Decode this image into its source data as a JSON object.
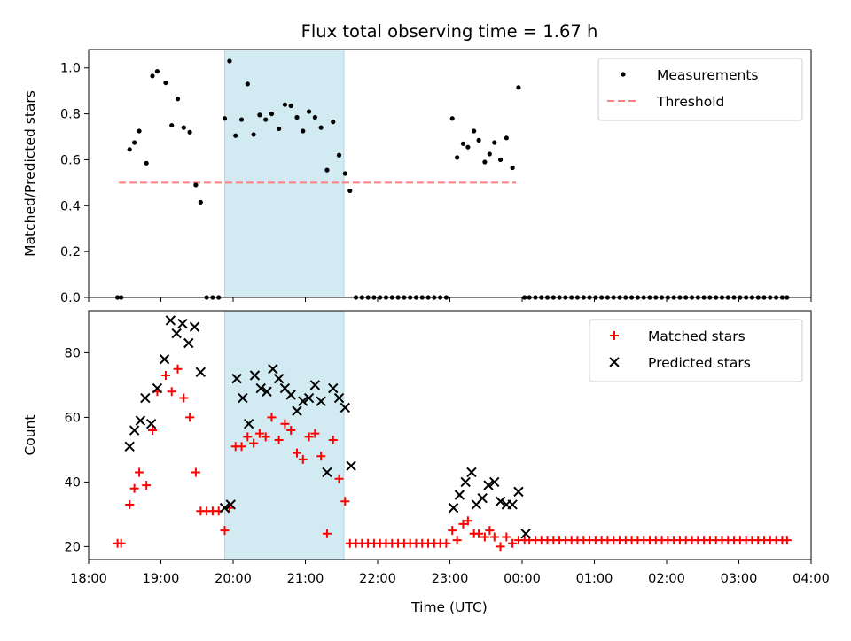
{
  "figure": {
    "title": "Flux total observing time = 1.67 h",
    "xlabel": "Time (UTC)"
  },
  "colors": {
    "measurements": "#000000",
    "threshold": "#ff7f7f",
    "matched": "#ff0000",
    "predicted": "#000000",
    "highlight": "#add8e6"
  },
  "chart_data": [
    {
      "type": "scatter",
      "panel": "top",
      "ylabel": "Matched/Predicted stars",
      "xlim": [
        "18:00",
        "04:00"
      ],
      "ylim": [
        0.0,
        1.08
      ],
      "yticks": [
        0.0,
        0.2,
        0.4,
        0.6,
        0.8,
        1.0
      ],
      "ytick_labels": [
        "0.0",
        "0.2",
        "0.4",
        "0.6",
        "0.8",
        "1.0"
      ],
      "highlight_span": [
        "19:53",
        "21:32"
      ],
      "legend": {
        "position": "top-right",
        "entries": [
          "Measurements",
          "Threshold"
        ]
      },
      "threshold": {
        "name": "Threshold",
        "value": 0.5,
        "x": [
          "18:25",
          "23:55"
        ]
      },
      "series": [
        {
          "name": "Measurements",
          "marker": "dot",
          "x": [
            "18:24",
            "18:27",
            "18:34",
            "18:38",
            "18:42",
            "18:48",
            "18:53",
            "18:57",
            "19:04",
            "19:09",
            "19:14",
            "19:19",
            "19:24",
            "19:29",
            "19:33",
            "19:38",
            "19:43",
            "19:48",
            "19:53",
            "19:57",
            "20:02",
            "20:07",
            "20:12",
            "20:17",
            "20:22",
            "20:27",
            "20:32",
            "20:38",
            "20:43",
            "20:48",
            "20:53",
            "20:58",
            "21:03",
            "21:08",
            "21:13",
            "21:18",
            "21:23",
            "21:28",
            "21:33",
            "21:37",
            "21:42",
            "21:47",
            "21:52",
            "21:57",
            "22:02",
            "22:07",
            "22:12",
            "22:17",
            "22:22",
            "22:27",
            "22:32",
            "22:37",
            "22:42",
            "22:47",
            "22:52",
            "22:57",
            "23:02",
            "23:06",
            "23:11",
            "23:15",
            "23:20",
            "23:24",
            "23:29",
            "23:33",
            "23:37",
            "23:42",
            "23:47",
            "23:52",
            "23:57",
            "00:02",
            "00:06",
            "00:11",
            "00:16",
            "00:21",
            "00:26",
            "00:31",
            "00:36",
            "00:41",
            "00:46",
            "00:51",
            "00:56",
            "01:01",
            "01:06",
            "01:11",
            "01:16",
            "01:21",
            "01:26",
            "01:31",
            "01:36",
            "01:41",
            "01:46",
            "01:51",
            "01:56",
            "02:01",
            "02:06",
            "02:11",
            "02:16",
            "02:21",
            "02:26",
            "02:31",
            "02:36",
            "02:41",
            "02:46",
            "02:51",
            "02:56",
            "03:01",
            "03:06",
            "03:11",
            "03:16",
            "03:21",
            "03:26",
            "03:31",
            "03:36",
            "03:40"
          ],
          "y": [
            0.0,
            0.0,
            0.645,
            0.675,
            0.725,
            0.585,
            0.965,
            0.985,
            0.935,
            0.75,
            0.865,
            0.74,
            0.72,
            0.49,
            0.415,
            0.0,
            0.0,
            0.0,
            0.78,
            1.03,
            0.705,
            0.775,
            0.93,
            0.71,
            0.795,
            0.775,
            0.8,
            0.735,
            0.84,
            0.835,
            0.785,
            0.725,
            0.81,
            0.785,
            0.74,
            0.555,
            0.765,
            0.62,
            0.54,
            0.465,
            0.0,
            0.0,
            0.0,
            0.0,
            0.0,
            0.0,
            0.0,
            0.0,
            0.0,
            0.0,
            0.0,
            0.0,
            0.0,
            0.0,
            0.0,
            0.0,
            0.78,
            0.61,
            0.67,
            0.655,
            0.725,
            0.685,
            0.59,
            0.625,
            0.675,
            0.6,
            0.695,
            0.565,
            0.915,
            0.0,
            0.0,
            0.0,
            0.0,
            0.0,
            0.0,
            0.0,
            0.0,
            0.0,
            0.0,
            0.0,
            0.0,
            0.0,
            0.0,
            0.0,
            0.0,
            0.0,
            0.0,
            0.0,
            0.0,
            0.0,
            0.0,
            0.0,
            0.0,
            0.0,
            0.0,
            0.0,
            0.0,
            0.0,
            0.0,
            0.0,
            0.0,
            0.0,
            0.0,
            0.0,
            0.0,
            0.0,
            0.0,
            0.0,
            0.0,
            0.0,
            0.0,
            0.0,
            0.0,
            0.0
          ]
        }
      ]
    },
    {
      "type": "scatter",
      "panel": "bottom",
      "ylabel": "Count",
      "xlabel": "Time (UTC)",
      "xlim": [
        "18:00",
        "04:00"
      ],
      "ylim": [
        16,
        93
      ],
      "yticks": [
        20,
        40,
        60,
        80
      ],
      "ytick_labels": [
        "20",
        "40",
        "60",
        "80"
      ],
      "xticks": [
        "18:00",
        "19:00",
        "20:00",
        "21:00",
        "22:00",
        "23:00",
        "00:00",
        "01:00",
        "02:00",
        "03:00",
        "04:00"
      ],
      "highlight_span": [
        "19:53",
        "21:32"
      ],
      "legend": {
        "position": "top-right",
        "entries": [
          "Matched stars",
          "Predicted stars"
        ]
      },
      "series": [
        {
          "name": "Matched stars",
          "marker": "plus",
          "x": [
            "18:24",
            "18:27",
            "18:34",
            "18:38",
            "18:42",
            "18:48",
            "18:53",
            "18:57",
            "19:04",
            "19:09",
            "19:14",
            "19:19",
            "19:24",
            "19:29",
            "19:33",
            "19:38",
            "19:43",
            "19:48",
            "19:53",
            "19:57",
            "20:02",
            "20:07",
            "20:12",
            "20:17",
            "20:22",
            "20:27",
            "20:32",
            "20:38",
            "20:43",
            "20:48",
            "20:53",
            "20:58",
            "21:03",
            "21:08",
            "21:13",
            "21:18",
            "21:23",
            "21:28",
            "21:33",
            "21:37",
            "21:42",
            "21:47",
            "21:52",
            "21:57",
            "22:02",
            "22:07",
            "22:12",
            "22:17",
            "22:22",
            "22:27",
            "22:32",
            "22:37",
            "22:42",
            "22:47",
            "22:52",
            "22:57",
            "23:02",
            "23:06",
            "23:11",
            "23:15",
            "23:20",
            "23:24",
            "23:29",
            "23:33",
            "23:37",
            "23:42",
            "23:47",
            "23:52",
            "23:57",
            "00:02",
            "00:06",
            "00:11",
            "00:16",
            "00:21",
            "00:26",
            "00:31",
            "00:36",
            "00:41",
            "00:46",
            "00:51",
            "00:56",
            "01:01",
            "01:06",
            "01:11",
            "01:16",
            "01:21",
            "01:26",
            "01:31",
            "01:36",
            "01:41",
            "01:46",
            "01:51",
            "01:56",
            "02:01",
            "02:06",
            "02:11",
            "02:16",
            "02:21",
            "02:26",
            "02:31",
            "02:36",
            "02:41",
            "02:46",
            "02:51",
            "02:56",
            "03:01",
            "03:06",
            "03:11",
            "03:16",
            "03:21",
            "03:26",
            "03:31",
            "03:36",
            "03:40"
          ],
          "y": [
            21,
            21,
            33,
            38,
            43,
            39,
            56,
            68,
            73,
            68,
            75,
            66,
            60,
            43,
            31,
            31,
            31,
            31,
            25,
            32,
            51,
            51,
            54,
            52,
            55,
            54,
            60,
            53,
            58,
            56,
            49,
            47,
            54,
            55,
            48,
            24,
            53,
            41,
            34,
            21,
            21,
            21,
            21,
            21,
            21,
            21,
            21,
            21,
            21,
            21,
            21,
            21,
            21,
            21,
            21,
            21,
            25,
            22,
            27,
            28,
            24,
            24,
            23,
            25,
            23,
            20,
            23,
            21,
            22,
            22,
            22,
            22,
            22,
            22,
            22,
            22,
            22,
            22,
            22,
            22,
            22,
            22,
            22,
            22,
            22,
            22,
            22,
            22,
            22,
            22,
            22,
            22,
            22,
            22,
            22,
            22,
            22,
            22,
            22,
            22,
            22,
            22,
            22,
            22,
            22,
            22,
            22,
            22,
            22,
            22,
            22,
            22,
            22,
            22
          ]
        },
        {
          "name": "Predicted stars",
          "marker": "x",
          "x": [
            "18:34",
            "18:38",
            "18:43",
            "18:47",
            "18:52",
            "18:57",
            "19:03",
            "19:08",
            "19:13",
            "19:18",
            "19:23",
            "19:28",
            "19:33",
            "19:53",
            "19:58",
            "20:03",
            "20:08",
            "20:13",
            "20:18",
            "20:23",
            "20:28",
            "20:33",
            "20:38",
            "20:43",
            "20:48",
            "20:53",
            "20:58",
            "21:03",
            "21:08",
            "21:13",
            "21:18",
            "21:23",
            "21:28",
            "21:33",
            "21:38",
            "23:03",
            "23:08",
            "23:13",
            "23:18",
            "23:22",
            "23:27",
            "23:32",
            "23:37",
            "23:42",
            "23:47",
            "23:52",
            "23:57",
            "00:03"
          ],
          "y": [
            51,
            56,
            59,
            66,
            58,
            69,
            78,
            90,
            86,
            89,
            83,
            88,
            74,
            32,
            33,
            72,
            66,
            58,
            73,
            69,
            68,
            75,
            72,
            69,
            67,
            62,
            65,
            66,
            70,
            65,
            43,
            69,
            66,
            63,
            45,
            32,
            36,
            40,
            43,
            33,
            35,
            39,
            40,
            34,
            33,
            33,
            37,
            24
          ]
        }
      ]
    }
  ]
}
